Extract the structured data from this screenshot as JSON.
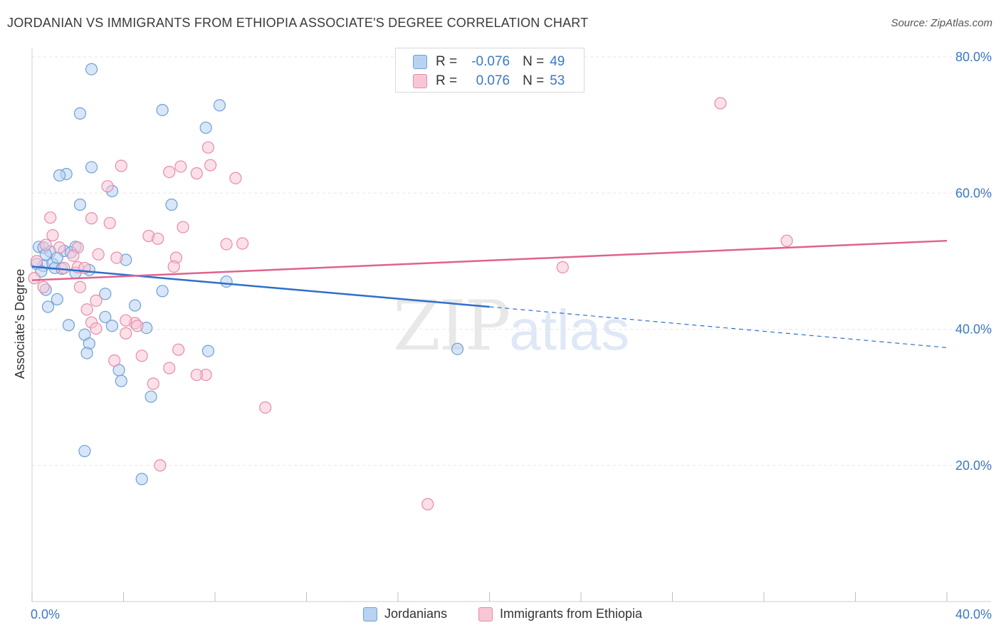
{
  "header": {
    "title": "JORDANIAN VS IMMIGRANTS FROM ETHIOPIA ASSOCIATE'S DEGREE CORRELATION CHART",
    "source": "Source: ZipAtlas.com"
  },
  "stats": {
    "rows": [
      {
        "r_label": "R =",
        "r_value": "-0.076",
        "n_label": "N =",
        "n_value": "49"
      },
      {
        "r_label": "R =",
        "r_value": "0.076",
        "n_label": "N =",
        "n_value": "53"
      }
    ]
  },
  "legend": {
    "items": [
      {
        "label": "Jordanians"
      },
      {
        "label": "Immigrants from Ethiopia"
      }
    ]
  },
  "watermark": {
    "zip": "ZIP",
    "atlas": "atlas"
  },
  "colors": {
    "blue_fill": "#b8d2f2",
    "blue_stroke": "#6d9fd8",
    "blue_line": "#2f6fcb",
    "pink_fill": "#f8c7d6",
    "pink_stroke": "#e88aa8",
    "pink_line": "#e0628e",
    "tick_label": "#3b78c4",
    "grid": "#e6e6e6"
  },
  "chart_data": {
    "type": "scatter",
    "title": "JORDANIAN VS IMMIGRANTS FROM ETHIOPIA ASSOCIATE'S DEGREE CORRELATION CHART",
    "xlabel": "",
    "ylabel": "Associate's Degree",
    "xlim": [
      0,
      40
    ],
    "ylim": [
      0,
      80
    ],
    "x_tick_labels": [
      "0.0%",
      "40.0%"
    ],
    "y_ticks": [
      20,
      40,
      60,
      80
    ],
    "y_tick_labels": [
      "20.0%",
      "40.0%",
      "60.0%",
      "80.0%"
    ],
    "grid": true,
    "series": [
      {
        "name": "Jordanians",
        "color": "blue",
        "points": [
          [
            2.6,
            78.2
          ],
          [
            2.1,
            71.7
          ],
          [
            5.7,
            72.2
          ],
          [
            8.2,
            72.9
          ],
          [
            7.6,
            69.6
          ],
          [
            2.6,
            63.8
          ],
          [
            1.5,
            62.8
          ],
          [
            1.2,
            62.6
          ],
          [
            3.5,
            60.3
          ],
          [
            2.1,
            58.3
          ],
          [
            6.1,
            58.3
          ],
          [
            0.3,
            52.1
          ],
          [
            0.5,
            52.0
          ],
          [
            0.8,
            51.4
          ],
          [
            1.4,
            51.5
          ],
          [
            1.9,
            52.1
          ],
          [
            0.6,
            51.0
          ],
          [
            1.7,
            51.3
          ],
          [
            0.5,
            49.3
          ],
          [
            0.9,
            49.6
          ],
          [
            1.0,
            49.0
          ],
          [
            1.9,
            48.3
          ],
          [
            4.1,
            50.2
          ],
          [
            8.5,
            47.0
          ],
          [
            0.6,
            45.8
          ],
          [
            1.1,
            44.4
          ],
          [
            3.2,
            45.2
          ],
          [
            5.7,
            45.6
          ],
          [
            0.7,
            43.3
          ],
          [
            4.5,
            43.5
          ],
          [
            3.2,
            41.8
          ],
          [
            1.6,
            40.6
          ],
          [
            3.5,
            40.5
          ],
          [
            5.0,
            40.2
          ],
          [
            2.3,
            39.2
          ],
          [
            2.5,
            37.9
          ],
          [
            2.4,
            36.5
          ],
          [
            7.7,
            36.8
          ],
          [
            18.6,
            37.1
          ],
          [
            3.8,
            34.0
          ],
          [
            3.9,
            32.4
          ],
          [
            5.2,
            30.1
          ],
          [
            2.3,
            22.1
          ],
          [
            4.8,
            18.0
          ],
          [
            0.2,
            49.6
          ],
          [
            1.3,
            48.9
          ],
          [
            0.4,
            48.5
          ],
          [
            2.5,
            48.7
          ],
          [
            1.1,
            50.5
          ]
        ]
      },
      {
        "name": "Immigrants from Ethiopia",
        "color": "pink",
        "points": [
          [
            30.1,
            73.2
          ],
          [
            7.7,
            66.7
          ],
          [
            3.9,
            64.0
          ],
          [
            6.0,
            63.1
          ],
          [
            7.8,
            64.1
          ],
          [
            6.5,
            63.9
          ],
          [
            7.2,
            62.9
          ],
          [
            8.9,
            62.2
          ],
          [
            3.3,
            61.0
          ],
          [
            0.8,
            56.4
          ],
          [
            2.6,
            56.3
          ],
          [
            3.4,
            55.6
          ],
          [
            6.6,
            55.0
          ],
          [
            0.9,
            53.8
          ],
          [
            5.1,
            53.7
          ],
          [
            5.5,
            53.3
          ],
          [
            9.2,
            52.6
          ],
          [
            8.5,
            52.5
          ],
          [
            0.6,
            52.4
          ],
          [
            1.2,
            52.0
          ],
          [
            2.0,
            52.0
          ],
          [
            2.9,
            51.0
          ],
          [
            3.7,
            50.5
          ],
          [
            6.3,
            50.5
          ],
          [
            1.8,
            50.8
          ],
          [
            0.2,
            50.0
          ],
          [
            6.2,
            49.2
          ],
          [
            2.0,
            49.1
          ],
          [
            1.4,
            49.0
          ],
          [
            2.3,
            49.0
          ],
          [
            23.2,
            49.1
          ],
          [
            33.0,
            53.0
          ],
          [
            0.1,
            47.5
          ],
          [
            2.1,
            46.2
          ],
          [
            2.8,
            44.2
          ],
          [
            2.4,
            42.9
          ],
          [
            2.6,
            41.0
          ],
          [
            4.5,
            40.9
          ],
          [
            4.1,
            41.3
          ],
          [
            4.6,
            40.5
          ],
          [
            4.1,
            39.4
          ],
          [
            2.8,
            40.1
          ],
          [
            6.4,
            37.0
          ],
          [
            4.8,
            36.1
          ],
          [
            3.6,
            35.4
          ],
          [
            6.0,
            34.3
          ],
          [
            7.6,
            33.3
          ],
          [
            7.2,
            33.3
          ],
          [
            5.3,
            32.0
          ],
          [
            10.2,
            28.5
          ],
          [
            5.6,
            20.0
          ],
          [
            17.3,
            14.3
          ],
          [
            0.5,
            46.2
          ]
        ]
      }
    ],
    "trend_lines": [
      {
        "name": "Jordanians",
        "solid_from": [
          0,
          49.2
        ],
        "solid_to": [
          20,
          43.3
        ],
        "dashed_to": [
          40,
          37.3
        ]
      },
      {
        "name": "Immigrants from Ethiopia",
        "from": [
          0,
          47.2
        ],
        "to": [
          40,
          53.0
        ]
      }
    ]
  }
}
